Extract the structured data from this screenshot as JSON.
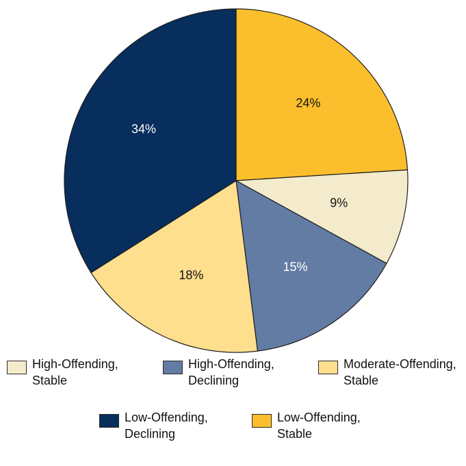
{
  "chart_data": {
    "type": "pie",
    "start_angle_deg": 0,
    "direction": "clockwise",
    "slices": [
      {
        "label": "Low-Offending, Stable",
        "value": 24,
        "display": "24%",
        "color": "#fbbf2d",
        "label_color": "#111111"
      },
      {
        "label": "High-Offending, Stable",
        "value": 9,
        "display": "9%",
        "color": "#f4ebcd",
        "label_color": "#111111"
      },
      {
        "label": "High-Offending, Declining",
        "value": 15,
        "display": "15%",
        "color": "#637ca4",
        "label_color": "#ffffff"
      },
      {
        "label": "Moderate-Offending, Stable",
        "value": 18,
        "display": "18%",
        "color": "#fddf8e",
        "label_color": "#111111"
      },
      {
        "label": "Low-Offending, Declining",
        "value": 34,
        "display": "34%",
        "color": "#072e5c",
        "label_color": "#ffffff"
      }
    ],
    "legend": {
      "placement": "bottom",
      "items": [
        {
          "line1": "High-Offending,",
          "line2": "Stable",
          "color": "#f4ebcd"
        },
        {
          "line1": "High-Offending,",
          "line2": "Declining",
          "color": "#637ca4"
        },
        {
          "line1": "Moderate-Offending,",
          "line2": "Stable",
          "color": "#fddf8e"
        },
        {
          "line1": "Low-Offending,",
          "line2": "Declining",
          "color": "#072e5c"
        },
        {
          "line1": "Low-Offending,",
          "line2": "Stable",
          "color": "#fbbf2d"
        }
      ]
    }
  }
}
